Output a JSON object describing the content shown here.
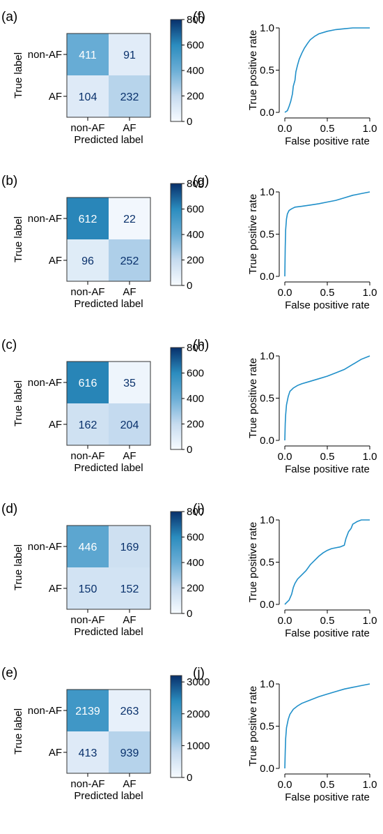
{
  "chart_data": [
    {
      "type": "heatmap",
      "panel_label": "(a)",
      "ylabel": "True label",
      "xlabel": "Predicted label",
      "row_labels": [
        "non-AF",
        "AF"
      ],
      "col_labels": [
        "non-AF",
        "AF"
      ],
      "values": [
        [
          411,
          91
        ],
        [
          104,
          232
        ]
      ],
      "colorbar": {
        "min": 0,
        "max": 800,
        "ticks": [
          0,
          200,
          400,
          600,
          800
        ]
      }
    },
    {
      "type": "heatmap",
      "panel_label": "(b)",
      "ylabel": "True label",
      "xlabel": "Predicted label",
      "row_labels": [
        "non-AF",
        "AF"
      ],
      "col_labels": [
        "non-AF",
        "AF"
      ],
      "values": [
        [
          612,
          22
        ],
        [
          96,
          252
        ]
      ],
      "colorbar": {
        "min": 0,
        "max": 800,
        "ticks": [
          0,
          200,
          400,
          600,
          800
        ]
      }
    },
    {
      "type": "heatmap",
      "panel_label": "(c)",
      "ylabel": "True label",
      "xlabel": "Predicted label",
      "row_labels": [
        "non-AF",
        "AF"
      ],
      "col_labels": [
        "non-AF",
        "AF"
      ],
      "values": [
        [
          616,
          35
        ],
        [
          162,
          204
        ]
      ],
      "colorbar": {
        "min": 0,
        "max": 800,
        "ticks": [
          0,
          200,
          400,
          600,
          800
        ]
      }
    },
    {
      "type": "heatmap",
      "panel_label": "(d)",
      "ylabel": "True label",
      "xlabel": "Predicted label",
      "row_labels": [
        "non-AF",
        "AF"
      ],
      "col_labels": [
        "non-AF",
        "AF"
      ],
      "values": [
        [
          446,
          169
        ],
        [
          150,
          152
        ]
      ],
      "colorbar": {
        "min": 0,
        "max": 800,
        "ticks": [
          0,
          200,
          400,
          600,
          800
        ]
      }
    },
    {
      "type": "heatmap",
      "panel_label": "(e)",
      "ylabel": "True label",
      "xlabel": "Predicted label",
      "row_labels": [
        "non-AF",
        "AF"
      ],
      "col_labels": [
        "non-AF",
        "AF"
      ],
      "values": [
        [
          2139,
          263
        ],
        [
          413,
          939
        ]
      ],
      "colorbar": {
        "min": 0,
        "max": 3200,
        "ticks": [
          0,
          1000,
          2000,
          3000
        ]
      }
    },
    {
      "type": "line",
      "panel_label": "(f)",
      "xlabel": "False positive rate",
      "ylabel": "True positive rate",
      "xlim": [
        0,
        1
      ],
      "ylim": [
        0,
        1
      ],
      "xticks": [
        "0.0",
        "0.5",
        "1.0"
      ],
      "yticks": [
        "0.0",
        "0.5",
        "1.0"
      ],
      "x": [
        0,
        0.03,
        0.05,
        0.07,
        0.09,
        0.1,
        0.12,
        0.13,
        0.15,
        0.17,
        0.2,
        0.23,
        0.27,
        0.3,
        0.35,
        0.4,
        0.5,
        0.6,
        0.7,
        0.8,
        1.0
      ],
      "y": [
        0,
        0.02,
        0.07,
        0.13,
        0.22,
        0.31,
        0.38,
        0.48,
        0.56,
        0.63,
        0.7,
        0.76,
        0.82,
        0.86,
        0.9,
        0.93,
        0.96,
        0.98,
        0.99,
        1.0,
        1.0
      ]
    },
    {
      "type": "line",
      "panel_label": "(g)",
      "xlabel": "False positive rate",
      "ylabel": "True positive rate",
      "xlim": [
        0,
        1
      ],
      "ylim": [
        0,
        1
      ],
      "xticks": [
        "0.0",
        "0.5",
        "1.0"
      ],
      "yticks": [
        "0.0",
        "0.5",
        "1.0"
      ],
      "x": [
        0,
        0.005,
        0.01,
        0.02,
        0.03,
        0.05,
        0.08,
        0.12,
        0.2,
        0.3,
        0.4,
        0.5,
        0.6,
        0.7,
        0.8,
        0.9,
        1.0
      ],
      "y": [
        0,
        0.35,
        0.55,
        0.68,
        0.74,
        0.78,
        0.8,
        0.82,
        0.83,
        0.845,
        0.86,
        0.88,
        0.9,
        0.93,
        0.96,
        0.98,
        1.0
      ]
    },
    {
      "type": "line",
      "panel_label": "(h)",
      "xlabel": "False positive rate",
      "ylabel": "True positive rate",
      "xlim": [
        0,
        1
      ],
      "ylim": [
        0,
        1
      ],
      "xticks": [
        "0.0",
        "0.5",
        "1.0"
      ],
      "yticks": [
        "0.0",
        "0.5",
        "1.0"
      ],
      "x": [
        0,
        0.005,
        0.01,
        0.02,
        0.04,
        0.06,
        0.1,
        0.15,
        0.2,
        0.3,
        0.4,
        0.5,
        0.6,
        0.7,
        0.8,
        0.9,
        1.0
      ],
      "y": [
        0,
        0.2,
        0.3,
        0.42,
        0.52,
        0.58,
        0.62,
        0.65,
        0.67,
        0.7,
        0.73,
        0.76,
        0.8,
        0.84,
        0.9,
        0.96,
        1.0
      ]
    },
    {
      "type": "line",
      "panel_label": "(i)",
      "xlabel": "False positive rate",
      "ylabel": "True positive rate",
      "xlim": [
        0,
        1
      ],
      "ylim": [
        0,
        1
      ],
      "xticks": [
        "0.0",
        "0.5",
        "1.0"
      ],
      "yticks": [
        "0.0",
        "0.5",
        "1.0"
      ],
      "x": [
        0,
        0.02,
        0.05,
        0.08,
        0.1,
        0.12,
        0.15,
        0.2,
        0.25,
        0.3,
        0.35,
        0.4,
        0.45,
        0.5,
        0.55,
        0.6,
        0.65,
        0.7,
        0.72,
        0.75,
        0.78,
        0.8,
        0.85,
        0.9,
        1.0
      ],
      "y": [
        0,
        0.02,
        0.05,
        0.12,
        0.2,
        0.25,
        0.3,
        0.35,
        0.4,
        0.47,
        0.52,
        0.57,
        0.61,
        0.64,
        0.66,
        0.67,
        0.68,
        0.7,
        0.78,
        0.86,
        0.9,
        0.95,
        0.98,
        1.0,
        1.0
      ]
    },
    {
      "type": "line",
      "panel_label": "(j)",
      "xlabel": "False positive rate",
      "ylabel": "True positive rate",
      "xlim": [
        0,
        1
      ],
      "ylim": [
        0,
        1
      ],
      "xticks": [
        "0.0",
        "0.5",
        "1.0"
      ],
      "yticks": [
        "0.0",
        "0.5",
        "1.0"
      ],
      "x": [
        0,
        0.005,
        0.01,
        0.02,
        0.04,
        0.06,
        0.1,
        0.15,
        0.2,
        0.3,
        0.4,
        0.5,
        0.6,
        0.7,
        0.8,
        0.9,
        1.0
      ],
      "y": [
        0,
        0.2,
        0.35,
        0.48,
        0.58,
        0.64,
        0.7,
        0.74,
        0.77,
        0.81,
        0.85,
        0.88,
        0.91,
        0.94,
        0.96,
        0.98,
        1.0
      ]
    }
  ],
  "colors": {
    "curve": "#1f8fc9",
    "cmap": [
      "#f7fbff",
      "#c6dbef",
      "#6baed6",
      "#2b8cbe",
      "#08306b"
    ]
  }
}
